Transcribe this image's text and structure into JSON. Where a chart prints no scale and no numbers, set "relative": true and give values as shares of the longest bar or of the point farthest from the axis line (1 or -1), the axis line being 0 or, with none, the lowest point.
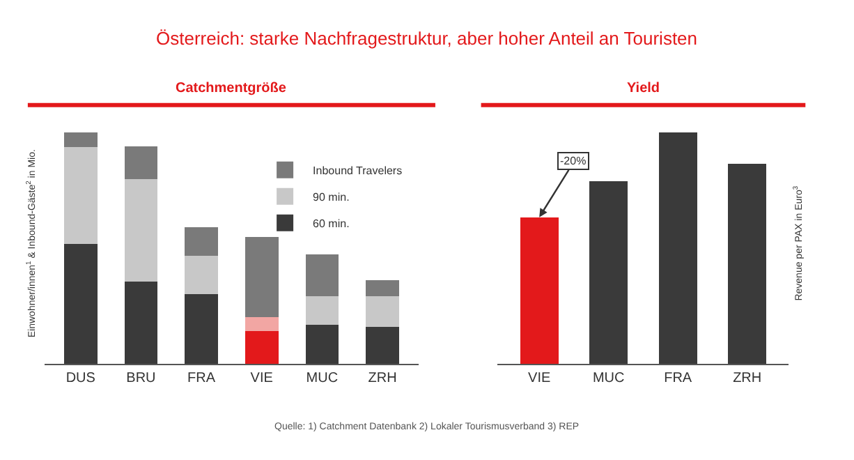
{
  "chart_data": [
    {
      "type": "bar",
      "title": "Catchmentgröße",
      "ylabel": "Einwohner/innen$^{1}$ & Inbound-Gäste$^{2}$ in Mio.",
      "stacked": true,
      "relative": true,
      "legend": "top right",
      "categories": [
        "DUS",
        "BRU",
        "FRA",
        "VIE",
        "MUC",
        "ZRH"
      ],
      "series": [
        {
          "name": "60 min.",
          "color": "#3a3a3a",
          "colors": [
            "#3a3a3a",
            "#3a3a3a",
            "#3a3a3a",
            "#e3191b",
            "#3a3a3a",
            "#3a3a3a"
          ],
          "values": [
            0.519,
            0.356,
            0.301,
            0.141,
            0.17,
            0.16
          ]
        },
        {
          "name": "90 min.",
          "color": "#c8c8c8",
          "colors": [
            "#c8c8c8",
            "#c8c8c8",
            "#c8c8c8",
            "#f2a6a3",
            "#c8c8c8",
            "#c8c8c8"
          ],
          "values": [
            0.417,
            0.44,
            0.165,
            0.062,
            0.123,
            0.133
          ]
        },
        {
          "name": "Inbound Travelers",
          "color": "#7a7a7a",
          "values": [
            0.064,
            0.143,
            0.123,
            0.346,
            0.18,
            0.069
          ]
        }
      ],
      "annotations": [
        "Österreich: starke Nachfragestruktur, aber hoher Anteil an Touristen",
        "Quelle: 1) Catchment Datenbank 2) Lokaler Tourismusverband 3) REP"
      ]
    },
    {
      "type": "bar",
      "title": "Yield",
      "y2label": "Revenue per PAX in Euro$^{3}$",
      "relative": true,
      "legend": false,
      "categories": [
        "VIE",
        "MUC",
        "FRA",
        "ZRH"
      ],
      "series": [
        {
          "color": "#3a3a3a",
          "colors": [
            "#e3191b",
            "#3a3a3a",
            "#3a3a3a",
            "#3a3a3a"
          ],
          "values": [
            0.633,
            0.788,
            1.0,
            0.865
          ]
        }
      ],
      "annotations": [
        {
          "text": "-20%",
          "x": "VIE",
          "y": 0.633
        }
      ]
    }
  ]
}
